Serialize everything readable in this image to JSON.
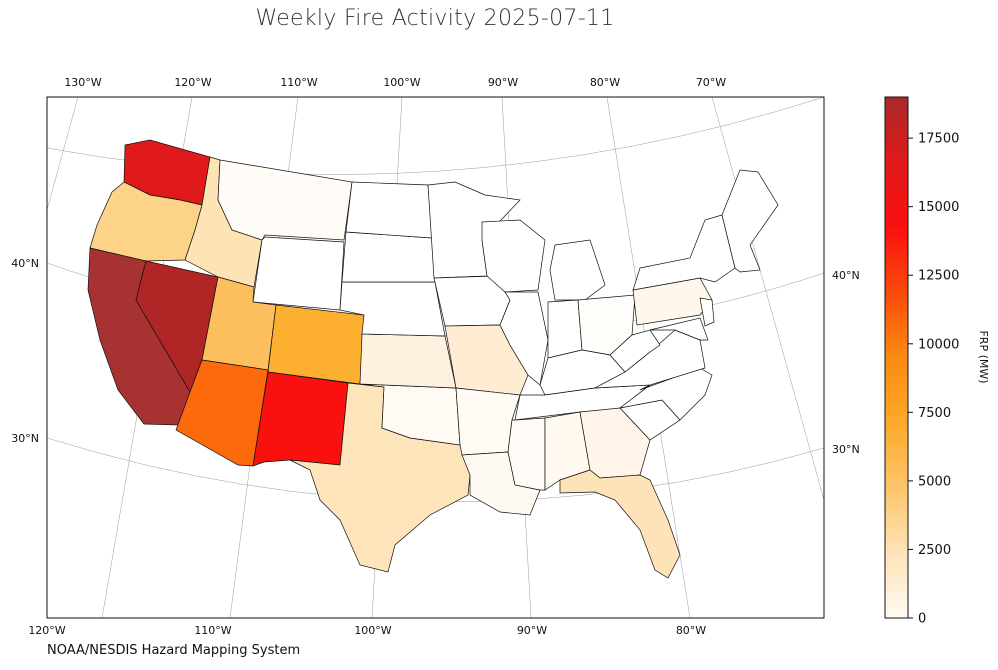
{
  "title": "Weekly Fire Activity 2025-07-11",
  "source": "NOAA/NESDIS Hazard Mapping System",
  "colorbar": {
    "label": "FRP (MW)",
    "ticks": [
      "0",
      "2500",
      "5000",
      "7500",
      "10000",
      "12500",
      "15000",
      "17500"
    ],
    "stops": [
      "#fffaf3",
      "#fee3b8",
      "#fdc56a",
      "#fca92b",
      "#fb8a10",
      "#fb4a0b",
      "#fb1010",
      "#e01a1a",
      "#a82a2a"
    ]
  },
  "axes": {
    "top_lon_labels": [
      "130°W",
      "120°W",
      "110°W",
      "100°W",
      "90°W",
      "80°W",
      "70°W"
    ],
    "bottom_lon_labels": [
      "120°W",
      "110°W",
      "100°W",
      "90°W",
      "80°W"
    ],
    "left_lat_labels": [
      "40°N",
      "30°N"
    ],
    "right_lat_labels": [
      "40°N",
      "30°N"
    ]
  },
  "states": [
    {
      "name": "Washington",
      "color": "#e01a1a"
    },
    {
      "name": "Oregon",
      "color": "#fdd38a"
    },
    {
      "name": "California",
      "color": "#a83232"
    },
    {
      "name": "Nevada",
      "color": "#b02525"
    },
    {
      "name": "Idaho",
      "color": "#fee3b5"
    },
    {
      "name": "Montana",
      "color": "#fffcf7"
    },
    {
      "name": "Wyoming",
      "color": "#ffffff"
    },
    {
      "name": "Utah",
      "color": "#fdbf5e"
    },
    {
      "name": "Colorado",
      "color": "#fdb02f"
    },
    {
      "name": "Arizona",
      "color": "#fc6a0c"
    },
    {
      "name": "New Mexico",
      "color": "#fb1010"
    },
    {
      "name": "Texas",
      "color": "#fee4bb"
    },
    {
      "name": "Oklahoma",
      "color": "#fffbf4"
    },
    {
      "name": "Kansas",
      "color": "#fff1df"
    },
    {
      "name": "Nebraska",
      "color": "#ffffff"
    },
    {
      "name": "South Dakota",
      "color": "#ffffff"
    },
    {
      "name": "North Dakota",
      "color": "#ffffff"
    },
    {
      "name": "Minnesota",
      "color": "#ffffff"
    },
    {
      "name": "Iowa",
      "color": "#ffffff"
    },
    {
      "name": "Missouri",
      "color": "#ffecd3"
    },
    {
      "name": "Arkansas",
      "color": "#fffbf4"
    },
    {
      "name": "Louisiana",
      "color": "#fffaf1"
    },
    {
      "name": "Wisconsin",
      "color": "#ffffff"
    },
    {
      "name": "Michigan",
      "color": "#ffffff"
    },
    {
      "name": "Illinois",
      "color": "#ffffff"
    },
    {
      "name": "Indiana",
      "color": "#ffffff"
    },
    {
      "name": "Ohio",
      "color": "#fffdfa"
    },
    {
      "name": "Kentucky",
      "color": "#ffffff"
    },
    {
      "name": "Tennessee",
      "color": "#ffffff"
    },
    {
      "name": "Mississippi",
      "color": "#fffcf7"
    },
    {
      "name": "Alabama",
      "color": "#fff9f0"
    },
    {
      "name": "Georgia",
      "color": "#fff6e9"
    },
    {
      "name": "Florida",
      "color": "#fee3b8"
    },
    {
      "name": "South Carolina",
      "color": "#ffffff"
    },
    {
      "name": "North Carolina",
      "color": "#ffffff"
    },
    {
      "name": "Virginia",
      "color": "#ffffff"
    },
    {
      "name": "West Virginia",
      "color": "#ffffff"
    },
    {
      "name": "Pennsylvania",
      "color": "#fff7ec"
    },
    {
      "name": "New York",
      "color": "#ffffff"
    },
    {
      "name": "Maryland",
      "color": "#ffffff"
    },
    {
      "name": "New Jersey",
      "color": "#ffffff"
    },
    {
      "name": "New England",
      "color": "#ffffff"
    }
  ]
}
